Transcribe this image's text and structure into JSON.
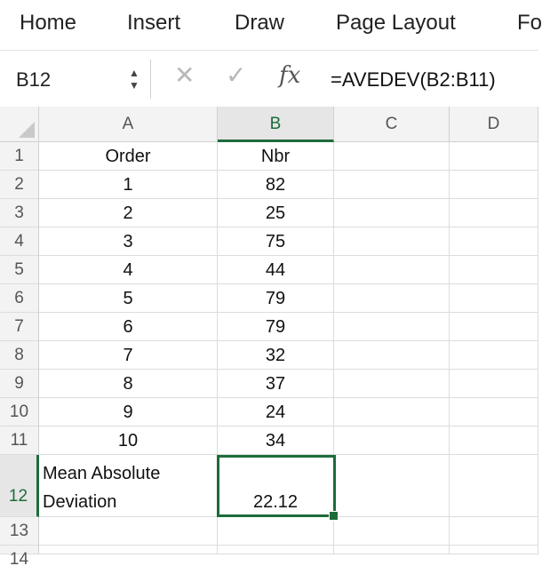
{
  "ribbon": {
    "tabs": [
      "Home",
      "Insert",
      "Draw",
      "Page Layout",
      "Fo"
    ]
  },
  "formula_bar": {
    "name_box": "B12",
    "formula": "=AVEDEV(B2:B11)",
    "fx_label": "fx"
  },
  "columns": [
    "A",
    "B",
    "C",
    "D"
  ],
  "rows": [
    {
      "num": "1",
      "a": "Order",
      "b": "Nbr"
    },
    {
      "num": "2",
      "a": "1",
      "b": "82"
    },
    {
      "num": "3",
      "a": "2",
      "b": "25"
    },
    {
      "num": "4",
      "a": "3",
      "b": "75"
    },
    {
      "num": "5",
      "a": "4",
      "b": "44"
    },
    {
      "num": "6",
      "a": "5",
      "b": "79"
    },
    {
      "num": "7",
      "a": "6",
      "b": "79"
    },
    {
      "num": "8",
      "a": "7",
      "b": "32"
    },
    {
      "num": "9",
      "a": "8",
      "b": "37"
    },
    {
      "num": "10",
      "a": "9",
      "b": "24"
    },
    {
      "num": "11",
      "a": "10",
      "b": "34"
    },
    {
      "num": "12",
      "a_line1": "Mean Absolute",
      "a_line2": "Deviation",
      "b": "22.12"
    },
    {
      "num": "13"
    },
    {
      "num": "14"
    }
  ],
  "colors": {
    "accent": "#1d6b3b"
  }
}
